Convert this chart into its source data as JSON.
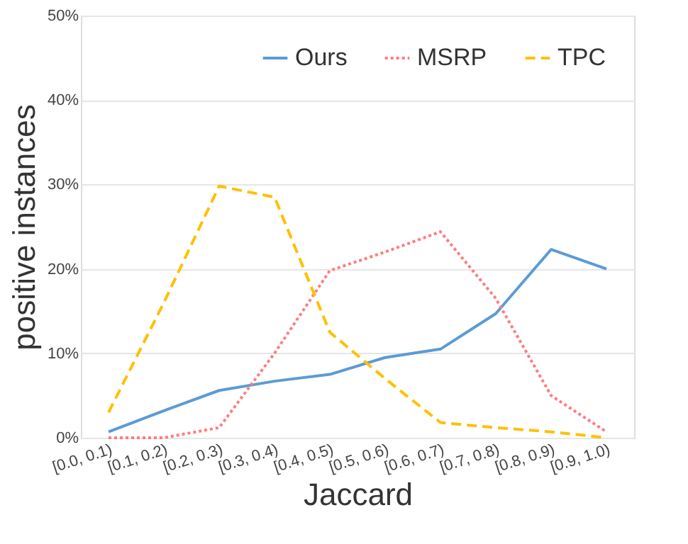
{
  "chart_data": {
    "type": "line",
    "xlabel": "Jaccard",
    "ylabel": "positive instances",
    "categories": [
      "[0.0, 0.1)",
      "[0.1, 0.2)",
      "[0.2, 0.3)",
      "[0.3, 0.4)",
      "[0.4, 0.5)",
      "[0.5, 0.6)",
      "[0.6, 0.7)",
      "[0.7, 0.8)",
      "[0.8, 0.9)",
      "[0.9, 1.0)"
    ],
    "series": [
      {
        "name": "Ours",
        "color": "#5b9bd5",
        "line_style": "solid",
        "values": [
          0.7,
          3.2,
          5.6,
          6.7,
          7.5,
          9.5,
          10.5,
          14.7,
          22.3,
          20.0
        ]
      },
      {
        "name": "MSRP",
        "color": "#ff7c80",
        "line_style": "dotted",
        "values": [
          0,
          0,
          1.2,
          10,
          19.8,
          22,
          24.4,
          16.5,
          5,
          0.7
        ]
      },
      {
        "name": "TPC",
        "color": "#ffc000",
        "line_style": "dashed",
        "values": [
          3,
          16,
          29.8,
          28.5,
          12.5,
          7,
          1.8,
          1.2,
          0.7,
          0
        ]
      }
    ],
    "ylim": [
      0,
      50
    ],
    "yticks": [
      {
        "value": 0,
        "label": "0%"
      },
      {
        "value": 10,
        "label": "10%"
      },
      {
        "value": 20,
        "label": "20%"
      },
      {
        "value": 30,
        "label": "30%"
      },
      {
        "value": 40,
        "label": "40%"
      },
      {
        "value": 50,
        "label": "50%"
      }
    ],
    "grid": "y",
    "legend": "top right",
    "marker": "none"
  }
}
